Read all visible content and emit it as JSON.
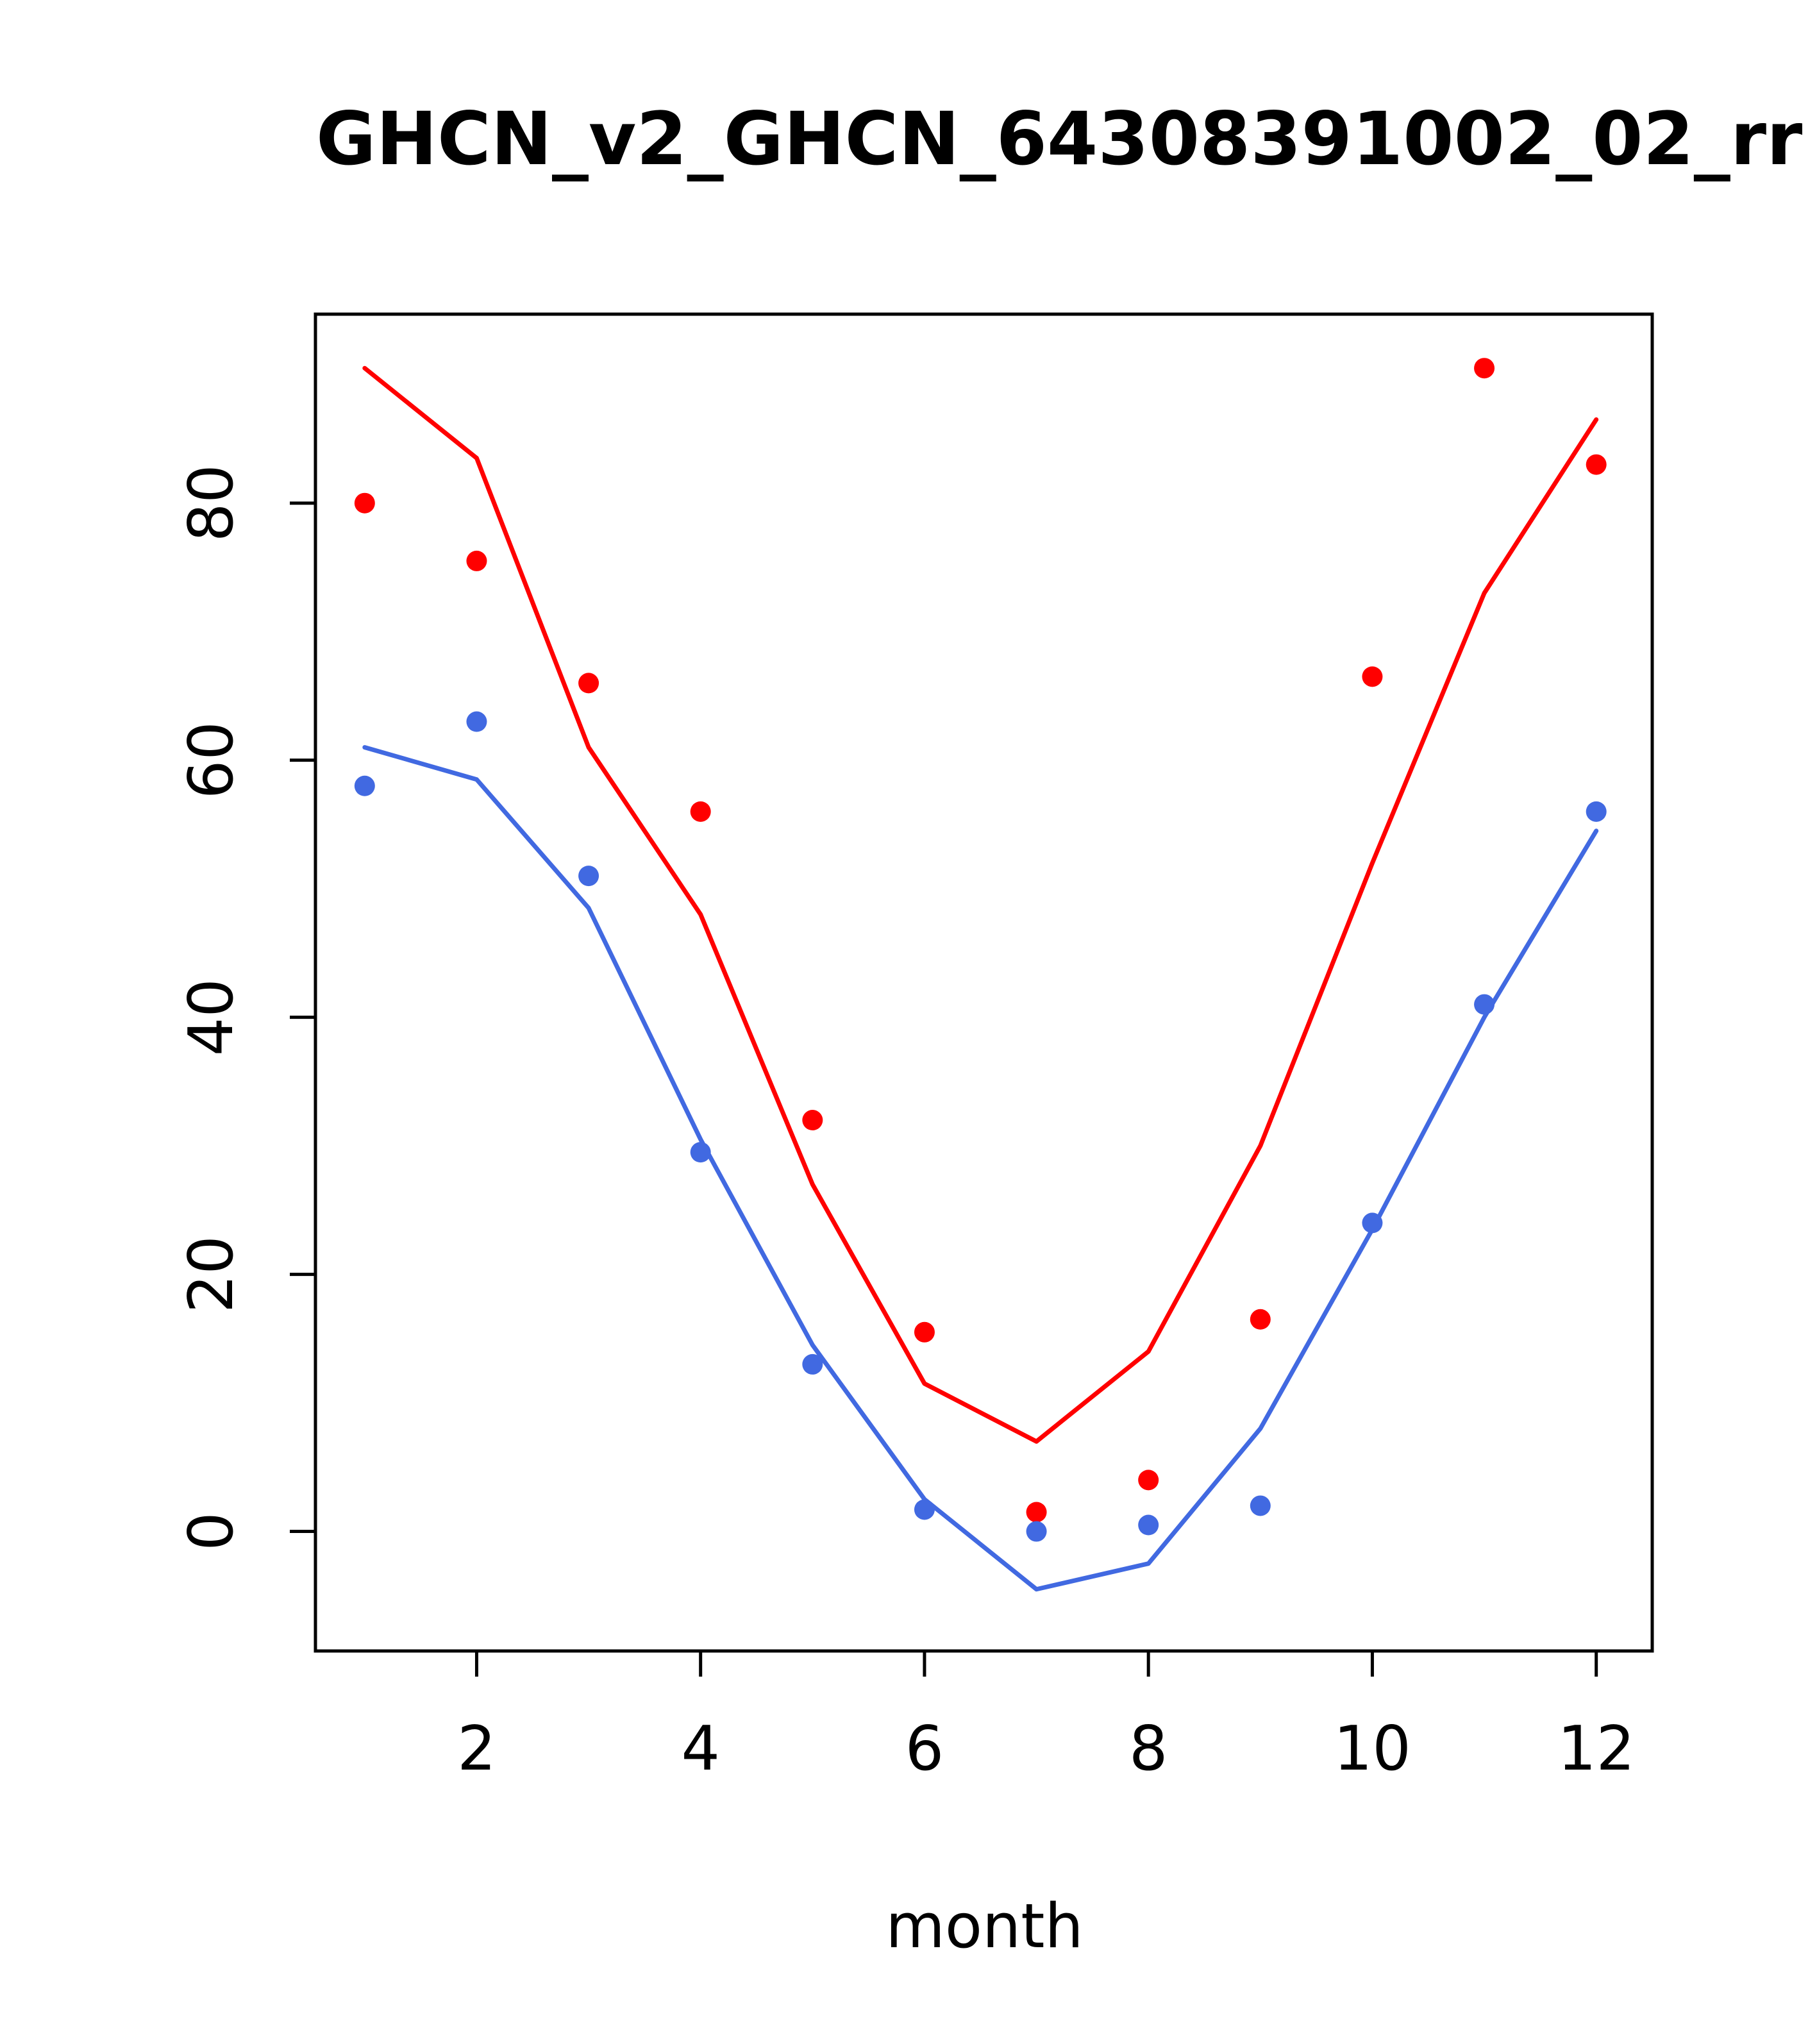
{
  "figure": {
    "title": "GHCN_v2_GHCN_64308391002_02_rr",
    "x_axis_label": "month"
  },
  "chart_data": {
    "type": "line",
    "title": "GHCN_v2_GHCN_64308391002_02_rr",
    "xlabel": "month",
    "ylabel": "",
    "x": [
      1,
      2,
      3,
      4,
      5,
      6,
      7,
      8,
      9,
      10,
      11,
      12
    ],
    "x_ticks": [
      2,
      4,
      6,
      8,
      10,
      12
    ],
    "y_ticks": [
      0,
      20,
      40,
      60,
      80
    ],
    "xlim": [
      0.56,
      12.5
    ],
    "ylim": [
      -9.3,
      94.7
    ],
    "grid": false,
    "legend": "none",
    "colors": {
      "red": "#ff0000",
      "blue": "#4169e1",
      "axis": "#000000"
    },
    "series": [
      {
        "name": "red-smooth-line",
        "style": "line",
        "color": "#ff0000",
        "values": [
          90.5,
          83.5,
          61,
          48,
          27,
          11.5,
          7,
          14,
          30,
          52,
          73,
          86.5
        ]
      },
      {
        "name": "blue-smooth-line",
        "style": "line",
        "color": "#4169e1",
        "values": [
          61,
          58.5,
          48.5,
          30.5,
          14.5,
          2.5,
          -4.5,
          -2.5,
          8,
          23.5,
          40,
          54.5
        ]
      },
      {
        "name": "red-points",
        "style": "points",
        "color": "#ff0000",
        "values": [
          80,
          75.5,
          66,
          56,
          32,
          15.5,
          1.5,
          4,
          16.5,
          66.5,
          90.5,
          83
        ]
      },
      {
        "name": "blue-points",
        "style": "points",
        "color": "#4169e1",
        "values": [
          58,
          63,
          51,
          29.5,
          13,
          1.7,
          0,
          0.5,
          2,
          24,
          41,
          56
        ]
      }
    ]
  }
}
